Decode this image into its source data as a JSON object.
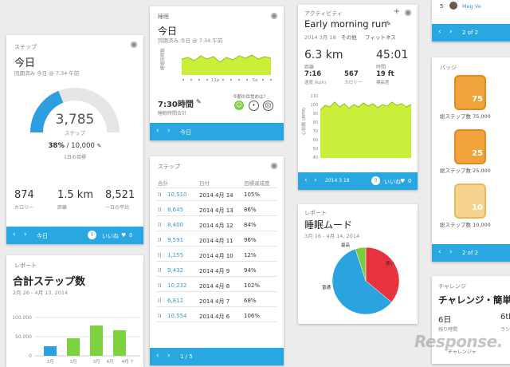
{
  "steps_card": {
    "label": "ステップ",
    "title": "今日",
    "synced": "同期済み 今日 @ 7:34 午前",
    "count": "3,785",
    "count_unit": "ステップ",
    "percent": "38%",
    "goal": "10,000",
    "goal_label": "1日の目標",
    "progress": 0.38,
    "stats": [
      {
        "value": "874",
        "label": "カロリー"
      },
      {
        "value": "1.5 km",
        "label": "距離"
      },
      {
        "value": "8,521",
        "label": "一日の平均"
      }
    ],
    "footer_text": "今日",
    "like_count": "0",
    "like_text": "いいね",
    "like_num": "0"
  },
  "sleep_card": {
    "label": "睡眠",
    "title": "今日",
    "synced": "同期済み 今日 @ 7:34 午前",
    "chart_axis_label": "睡眠時間数",
    "axis_ticks": [
      "11p",
      "5a"
    ],
    "duration": "7:30時間",
    "duration_label": "睡眠時間合計",
    "feeling_prompt": "今朝の目覚めは？",
    "footer_text": "今日"
  },
  "activity_card": {
    "label": "アクティビティ",
    "title": "Early morning run",
    "date": "2014 3月 18",
    "category": "その他",
    "type": "フィットネス",
    "distance": "6.3 km",
    "distance_label": "距離",
    "time": "45:01",
    "time_label": "時間",
    "speed": "7:16",
    "speed_label": "速度 (kph)",
    "calories": "567",
    "calories_label": "カロリー",
    "elevation": "19 ft",
    "elevation_label": "標高差",
    "hr_label": "心拍数 (BPM)",
    "hr_ticks": [
      "110",
      "100",
      "90",
      "80",
      "70",
      "60",
      "50",
      "40"
    ],
    "footer_text": "2014 3 18",
    "like_count": "0",
    "like_text": "いいね",
    "like_num": "0"
  },
  "steps_list_card": {
    "label": "ステップ",
    "headers": [
      "合計",
      "日付",
      "目標達成度"
    ],
    "rows": [
      {
        "steps": "10,510",
        "date": "2014 4月 14",
        "pct": "105%"
      },
      {
        "steps": "8,645",
        "date": "2014 4月 13",
        "pct": "86%"
      },
      {
        "steps": "8,400",
        "date": "2014 4月 12",
        "pct": "84%"
      },
      {
        "steps": "9,591",
        "date": "2014 4月 11",
        "pct": "96%"
      },
      {
        "steps": "1,155",
        "date": "2014 4月 10",
        "pct": "12%"
      },
      {
        "steps": "9,432",
        "date": "2014 4月 9",
        "pct": "94%"
      },
      {
        "steps": "10,232",
        "date": "2014 4月 8",
        "pct": "102%"
      },
      {
        "steps": "6,812",
        "date": "2014 4月 7",
        "pct": "68%"
      },
      {
        "steps": "10,554",
        "date": "2014 4月 6",
        "pct": "106%"
      }
    ],
    "footer_text": "1 / 5"
  },
  "report_card": {
    "label": "レポート",
    "title": "合計ステップ数",
    "range": "2月 26 - 4月 13, 2014",
    "y_ticks": [
      "100,000",
      "50,000",
      "0"
    ],
    "x_ticks": [
      "3月",
      "3月",
      "3月",
      "4月",
      "4月 7"
    ]
  },
  "mood_card": {
    "label": "レポート",
    "title": "睡眠ムード",
    "range": "3月 16 - 4月 14, 2014",
    "slices": [
      {
        "name": "悪い",
        "share": 0.36,
        "color": "#e8333f"
      },
      {
        "name": "普通",
        "share": 0.59,
        "color": "#2aa3df"
      },
      {
        "name": "最高",
        "share": 0.05,
        "color": "#7ccb3d"
      }
    ]
  },
  "right_top": {
    "rank": "5",
    "user": "Meg Ve",
    "footer_text": "2 of 2"
  },
  "badge_card": {
    "label": "バッジ",
    "badges": [
      {
        "number": "75",
        "label": "総ステップ数 75,000"
      },
      {
        "number": "25",
        "label": "総ステップ数 25,000"
      },
      {
        "number": "10",
        "label": "総ステップ数 10,000"
      }
    ],
    "footer_text": "2 of 2"
  },
  "challenge_card": {
    "label": "チャレンジ",
    "title": "チャレンジ・簡単",
    "days": "6日",
    "days_label": "残り時間",
    "rank": "6th",
    "rank_label": "ラン",
    "caption": "チャレンジャ"
  },
  "watermark": "Response."
}
